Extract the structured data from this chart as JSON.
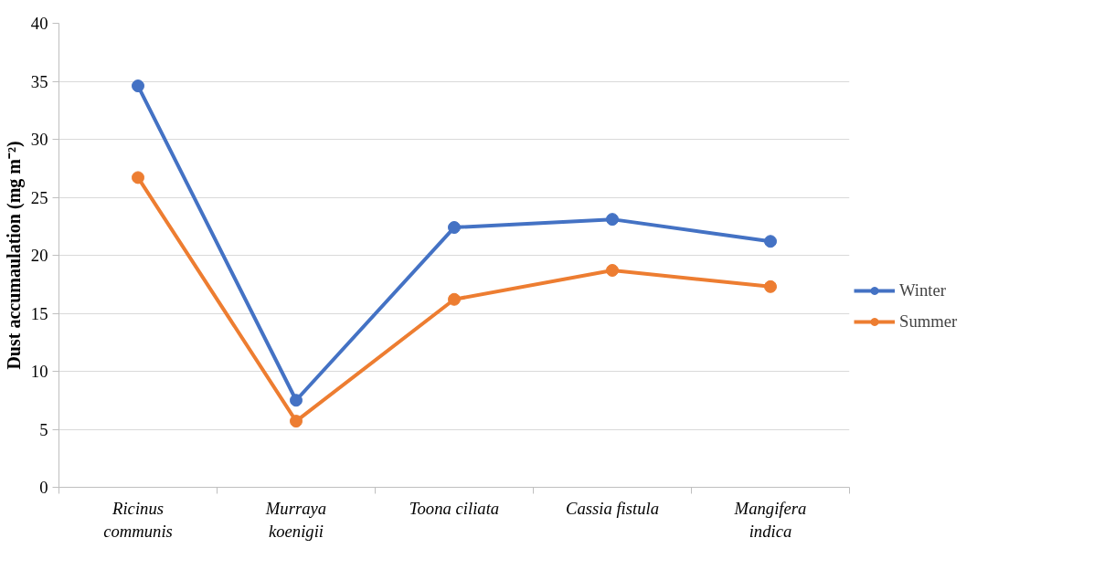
{
  "chart_data": {
    "type": "line",
    "ylabel": "Dust accumaulation (mg m⁻²)",
    "categories": [
      "Ricinus communis",
      "Murraya koenigii",
      "Toona ciliata",
      "Cassia fistula",
      "Mangifera indica"
    ],
    "series": [
      {
        "name": "Winter",
        "color": "#4472c4",
        "values": [
          34.6,
          7.5,
          22.4,
          23.1,
          21.2
        ]
      },
      {
        "name": "Summer",
        "color": "#ed7d31",
        "values": [
          26.7,
          5.7,
          16.2,
          18.7,
          17.3
        ]
      }
    ],
    "ylim": [
      0,
      40
    ],
    "yticks": [
      0,
      5,
      10,
      15,
      20,
      25,
      30,
      35,
      40
    ],
    "grid": "y",
    "legend": "right",
    "marker": "circle",
    "line_style": "solid"
  }
}
